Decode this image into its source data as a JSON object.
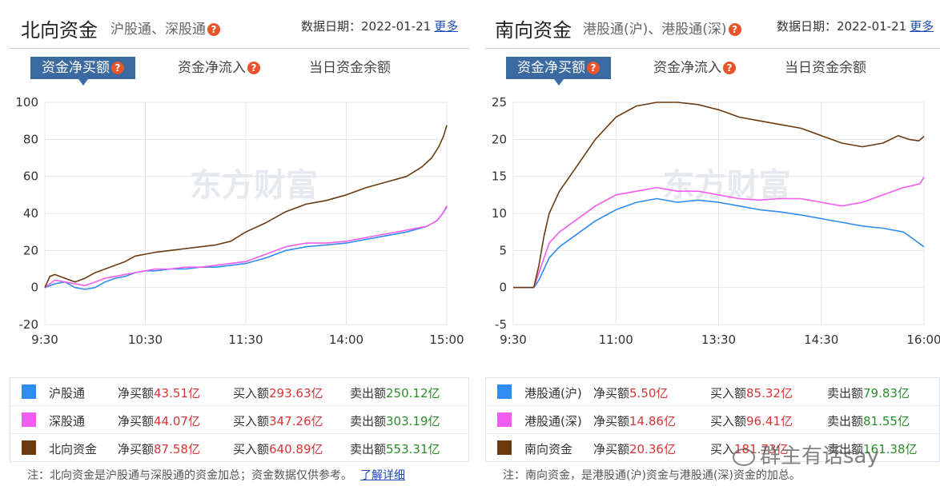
{
  "panels": [
    {
      "title": "北向资金",
      "subtitle": "沪股通、深股通",
      "date_label": "数据日期：2022-01-21",
      "more": "更多",
      "tabs": [
        "资金净买额",
        "资金净流入",
        "当日资金余额"
      ],
      "legend": [
        {
          "name": "沪股通",
          "color": "#2f8cf0",
          "net_label": "净买额",
          "net": "43.51亿",
          "buy_label": "买入额",
          "buy": "293.63亿",
          "sell_label": "卖出额",
          "sell": "250.12亿"
        },
        {
          "name": "深股通",
          "color": "#f25cf0",
          "net_label": "净买额",
          "net": "44.07亿",
          "buy_label": "买入额",
          "buy": "347.26亿",
          "sell_label": "卖出额",
          "sell": "303.19亿"
        },
        {
          "name": "北向资金",
          "color": "#6b3a0f",
          "net_label": "净买额",
          "net": "87.58亿",
          "buy_label": "买入额",
          "buy": "640.89亿",
          "sell_label": "卖出额",
          "sell": "553.31亿"
        }
      ],
      "note": "注：北向资金是沪股通与深股通的资金加总；资金数据仅供参考。",
      "note_link": "了解详细"
    },
    {
      "title": "南向资金",
      "subtitle": "港股通(沪)、港股通(深)",
      "date_label": "数据日期：2022-01-21",
      "more": "更多",
      "tabs": [
        "资金净买额",
        "资金净流入",
        "当日资金余额"
      ],
      "legend": [
        {
          "name": "港股通(沪)",
          "color": "#2f8cf0",
          "net_label": "净买额",
          "net": "5.50亿",
          "buy_label": "买入额",
          "buy": "85.32亿",
          "sell_label": "卖出额",
          "sell": "79.83亿"
        },
        {
          "name": "港股通(深)",
          "color": "#f25cf0",
          "net_label": "净买额",
          "net": "14.86亿",
          "buy_label": "买入额",
          "buy": "96.41亿",
          "sell_label": "卖出额",
          "sell": "81.55亿"
        },
        {
          "name": "南向资金",
          "color": "#6b3a0f",
          "net_label": "净买额",
          "net": "20.36亿",
          "buy_label": "买入",
          "buy": "181.73亿",
          "sell_label": "卖出额",
          "sell": "161.38亿"
        }
      ],
      "note": "注：南向资金，是港股通(沪)资金与港股通(深)资金的加总。",
      "note_link": ""
    }
  ],
  "watermark": "东方财富",
  "corner_watermark": "群主有话say",
  "chart_data": [
    {
      "type": "line",
      "ylim": [
        -20,
        100
      ],
      "yticks": [
        -20,
        0,
        20,
        40,
        60,
        80,
        100
      ],
      "xticks": [
        "9:30",
        "10:30",
        "11:30",
        "14:00",
        "15:00"
      ],
      "grid": true,
      "series": [
        {
          "name": "沪股通",
          "color": "#2f8cf0",
          "x": [
            0,
            0.1,
            0.2,
            0.3,
            0.4,
            0.5,
            0.6,
            0.7,
            0.8,
            0.9,
            1.0,
            1.1,
            1.25,
            1.4,
            1.55,
            1.7,
            1.85,
            2.0,
            2.2,
            2.4,
            2.6,
            2.8,
            3.0,
            3.2,
            3.4,
            3.6,
            3.8,
            3.9,
            3.96,
            4.0
          ],
          "values": [
            0,
            2,
            3,
            0,
            -1,
            0,
            3,
            5,
            6,
            8,
            9,
            9,
            10,
            10,
            11,
            11,
            12,
            13,
            16,
            20,
            22,
            23,
            24,
            26,
            28,
            30,
            33,
            36,
            40,
            43.5
          ]
        },
        {
          "name": "深股通",
          "color": "#f25cf0",
          "x": [
            0,
            0.1,
            0.2,
            0.3,
            0.4,
            0.5,
            0.6,
            0.7,
            0.8,
            0.9,
            1.0,
            1.1,
            1.25,
            1.4,
            1.55,
            1.7,
            1.85,
            2.0,
            2.2,
            2.4,
            2.6,
            2.8,
            3.0,
            3.2,
            3.4,
            3.6,
            3.8,
            3.9,
            3.96,
            4.0
          ],
          "values": [
            0,
            4,
            3,
            2,
            1,
            3,
            5,
            6,
            7,
            8,
            9,
            10,
            10,
            11,
            11,
            12,
            13,
            14,
            18,
            22,
            24,
            24,
            25,
            27,
            29,
            31,
            33,
            36,
            40,
            44.1
          ]
        },
        {
          "name": "北向资金",
          "color": "#6b3a0f",
          "x": [
            0,
            0.05,
            0.1,
            0.2,
            0.3,
            0.4,
            0.5,
            0.6,
            0.7,
            0.8,
            0.9,
            1.0,
            1.1,
            1.25,
            1.4,
            1.55,
            1.7,
            1.85,
            2.0,
            2.2,
            2.4,
            2.6,
            2.8,
            3.0,
            3.2,
            3.4,
            3.6,
            3.75,
            3.85,
            3.92,
            3.97,
            4.0
          ],
          "values": [
            0,
            6,
            7,
            5,
            3,
            5,
            8,
            10,
            12,
            14,
            17,
            18,
            19,
            20,
            21,
            22,
            23,
            25,
            30,
            35,
            41,
            45,
            47,
            50,
            54,
            57,
            60,
            65,
            70,
            76,
            82,
            87.6
          ]
        }
      ]
    },
    {
      "type": "line",
      "ylim": [
        -5,
        25
      ],
      "yticks": [
        -5,
        0,
        5,
        10,
        15,
        20,
        25
      ],
      "xticks": [
        "9:30",
        "11:00",
        "13:30",
        "14:30",
        "16:00"
      ],
      "grid": true,
      "series": [
        {
          "name": "港股通(沪)",
          "color": "#2f8cf0",
          "x": [
            0,
            0.2,
            0.25,
            0.3,
            0.35,
            0.45,
            0.6,
            0.8,
            1.0,
            1.2,
            1.4,
            1.6,
            1.8,
            2.0,
            2.2,
            2.4,
            2.6,
            2.8,
            3.0,
            3.2,
            3.4,
            3.6,
            3.8,
            3.9,
            4.0
          ],
          "values": [
            0,
            0,
            1,
            2.5,
            4,
            5.5,
            7,
            9,
            10.5,
            11.5,
            12,
            11.5,
            11.8,
            11.5,
            11,
            10.5,
            10.2,
            9.8,
            9.3,
            8.8,
            8.3,
            8,
            7.5,
            6.5,
            5.5
          ]
        },
        {
          "name": "港股通(深)",
          "color": "#f25cf0",
          "x": [
            0,
            0.2,
            0.25,
            0.3,
            0.35,
            0.45,
            0.6,
            0.8,
            1.0,
            1.2,
            1.4,
            1.6,
            1.8,
            2.0,
            2.2,
            2.4,
            2.6,
            2.8,
            3.0,
            3.2,
            3.4,
            3.6,
            3.8,
            3.9,
            3.96,
            4.0
          ],
          "values": [
            0,
            0,
            2,
            4,
            6,
            7.5,
            9,
            11,
            12.5,
            13,
            13.5,
            13,
            13,
            12.5,
            12,
            11.8,
            12,
            12,
            11.5,
            11,
            11.5,
            12.5,
            13.5,
            13.8,
            14,
            14.9
          ]
        },
        {
          "name": "南向资金",
          "color": "#6b3a0f",
          "x": [
            0,
            0.2,
            0.25,
            0.3,
            0.35,
            0.45,
            0.6,
            0.8,
            1.0,
            1.2,
            1.4,
            1.6,
            1.8,
            2.0,
            2.2,
            2.4,
            2.6,
            2.8,
            3.0,
            3.2,
            3.4,
            3.6,
            3.75,
            3.85,
            3.95,
            4.0
          ],
          "values": [
            0,
            0,
            3,
            7,
            10,
            13,
            16,
            20,
            23,
            24.5,
            25,
            25,
            24.7,
            24,
            23,
            22.5,
            22,
            21.5,
            20.5,
            19.5,
            19,
            19.5,
            20.5,
            20,
            19.8,
            20.4
          ]
        }
      ]
    }
  ]
}
